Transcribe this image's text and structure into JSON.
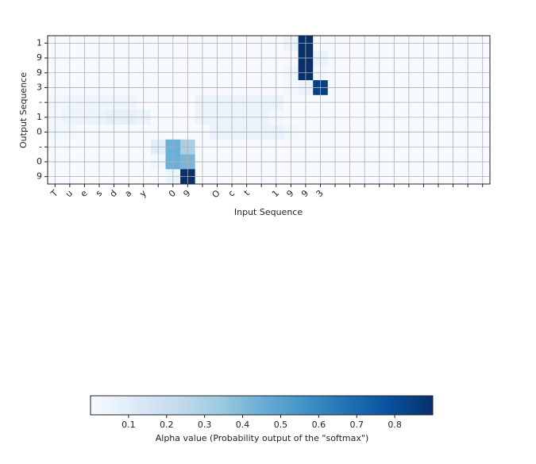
{
  "chart_data": {
    "type": "heatmap",
    "xlabel": "Input Sequence",
    "ylabel": "Output Sequence",
    "x_categories": [
      "T",
      "u",
      "e",
      "s",
      "d",
      "a",
      "y",
      null,
      "0",
      "9",
      null,
      "O",
      "c",
      "t",
      null,
      "1",
      "9",
      "9",
      "3",
      null,
      null,
      null,
      null,
      null,
      null,
      null,
      null,
      null,
      null,
      null
    ],
    "y_categories": [
      "1",
      "9",
      "9",
      "3",
      "-",
      "1",
      "0",
      "-",
      "0",
      "9"
    ],
    "values": [
      [
        0,
        0,
        0,
        0,
        0,
        0,
        0,
        0,
        0,
        0,
        0,
        0,
        0,
        0,
        0,
        0,
        0.05,
        0.92,
        0,
        0,
        0,
        0,
        0,
        0,
        0,
        0,
        0,
        0,
        0,
        0
      ],
      [
        0,
        0,
        0,
        0,
        0,
        0,
        0,
        0,
        0,
        0,
        0,
        0,
        0,
        0,
        0,
        0,
        0,
        0.9,
        0.06,
        0,
        0,
        0,
        0,
        0,
        0,
        0,
        0,
        0,
        0,
        0
      ],
      [
        0,
        0,
        0,
        0,
        0,
        0,
        0,
        0,
        0,
        0,
        0,
        0,
        0,
        0,
        0,
        0,
        0.03,
        0.9,
        0.03,
        0,
        0,
        0,
        0,
        0,
        0,
        0,
        0,
        0,
        0,
        0
      ],
      [
        0,
        0,
        0,
        0,
        0,
        0,
        0,
        0,
        0,
        0,
        0,
        0,
        0,
        0,
        0,
        0,
        0.02,
        0.06,
        0.85,
        0,
        0,
        0,
        0,
        0,
        0,
        0,
        0,
        0,
        0,
        0
      ],
      [
        0.03,
        0.04,
        0.04,
        0.04,
        0.04,
        0.04,
        0,
        0,
        0,
        0,
        0.05,
        0.05,
        0.05,
        0.05,
        0.05,
        0.05,
        0,
        0,
        0,
        0,
        0,
        0,
        0,
        0,
        0,
        0,
        0,
        0,
        0,
        0
      ],
      [
        0.02,
        0.05,
        0.05,
        0.05,
        0.08,
        0.08,
        0.05,
        0,
        0,
        0,
        0.05,
        0.05,
        0.05,
        0.05,
        0.05,
        0.02,
        0,
        0,
        0,
        0,
        0,
        0,
        0,
        0,
        0,
        0,
        0,
        0,
        0,
        0
      ],
      [
        0.03,
        0.02,
        0,
        0,
        0,
        0,
        0,
        0,
        0,
        0,
        0,
        0.06,
        0.06,
        0.06,
        0.06,
        0.06,
        0.03,
        0,
        0,
        0,
        0,
        0,
        0,
        0,
        0,
        0,
        0,
        0,
        0,
        0
      ],
      [
        0,
        0,
        0,
        0,
        0,
        0,
        0,
        0.1,
        0.45,
        0.3,
        0,
        0,
        0,
        0,
        0,
        0,
        0,
        0,
        0,
        0,
        0,
        0,
        0,
        0,
        0,
        0,
        0,
        0,
        0,
        0
      ],
      [
        0,
        0,
        0,
        0,
        0,
        0,
        0,
        0.03,
        0.45,
        0.42,
        0,
        0,
        0,
        0,
        0,
        0,
        0,
        0,
        0,
        0,
        0,
        0,
        0,
        0,
        0,
        0,
        0,
        0,
        0,
        0
      ],
      [
        0,
        0,
        0,
        0,
        0,
        0,
        0,
        0,
        0.05,
        0.9,
        0,
        0,
        0,
        0,
        0,
        0,
        0,
        0,
        0,
        0,
        0,
        0,
        0,
        0,
        0,
        0,
        0,
        0,
        0,
        0
      ]
    ],
    "colormap": [
      "#f7fbff",
      "#deebf7",
      "#c6dbef",
      "#9ecae1",
      "#6baed6",
      "#4292c6",
      "#2171b5",
      "#08519c",
      "#08306b"
    ],
    "clim": [
      0,
      0.9
    ],
    "colorbar_ticks": [
      0.1,
      0.2,
      0.3,
      0.4,
      0.5,
      0.6,
      0.7,
      0.8
    ],
    "colorbar_label": "Alpha value (Probability output of the \"softmax\")",
    "grid": true
  }
}
